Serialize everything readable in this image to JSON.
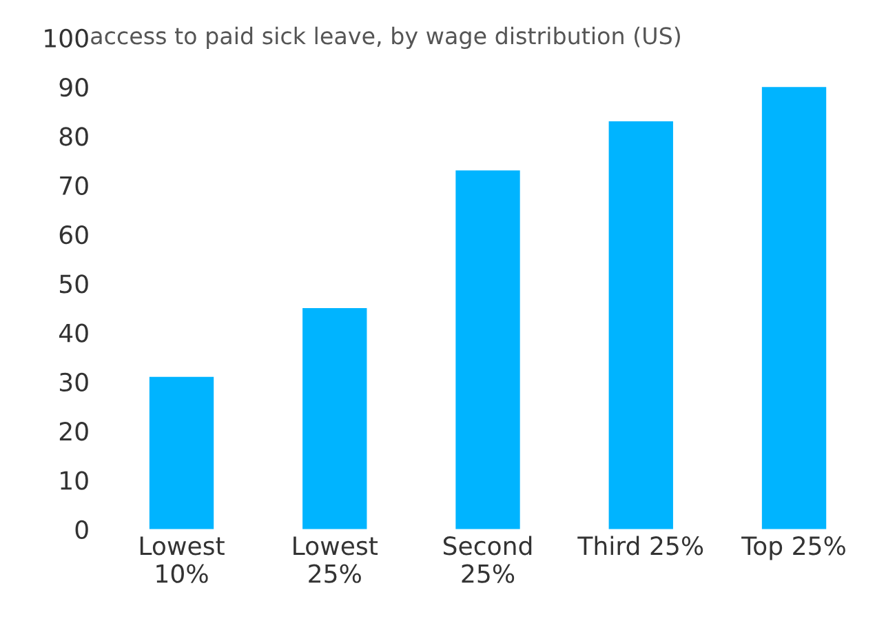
{
  "chart_data": {
    "type": "bar",
    "title": "access to paid sick leave, by wage distribution (US)",
    "categories": [
      "Lowest\n10%",
      "Lowest\n25%",
      "Second\n25%",
      "Third 25%",
      "Top 25%"
    ],
    "values": [
      31,
      45,
      73,
      83,
      90
    ],
    "color": "#00b4ff",
    "ylim": [
      0,
      100
    ],
    "yticks": [
      0,
      10,
      20,
      30,
      40,
      50,
      60,
      70,
      80,
      90,
      100
    ],
    "grid": false,
    "legend": false
  }
}
